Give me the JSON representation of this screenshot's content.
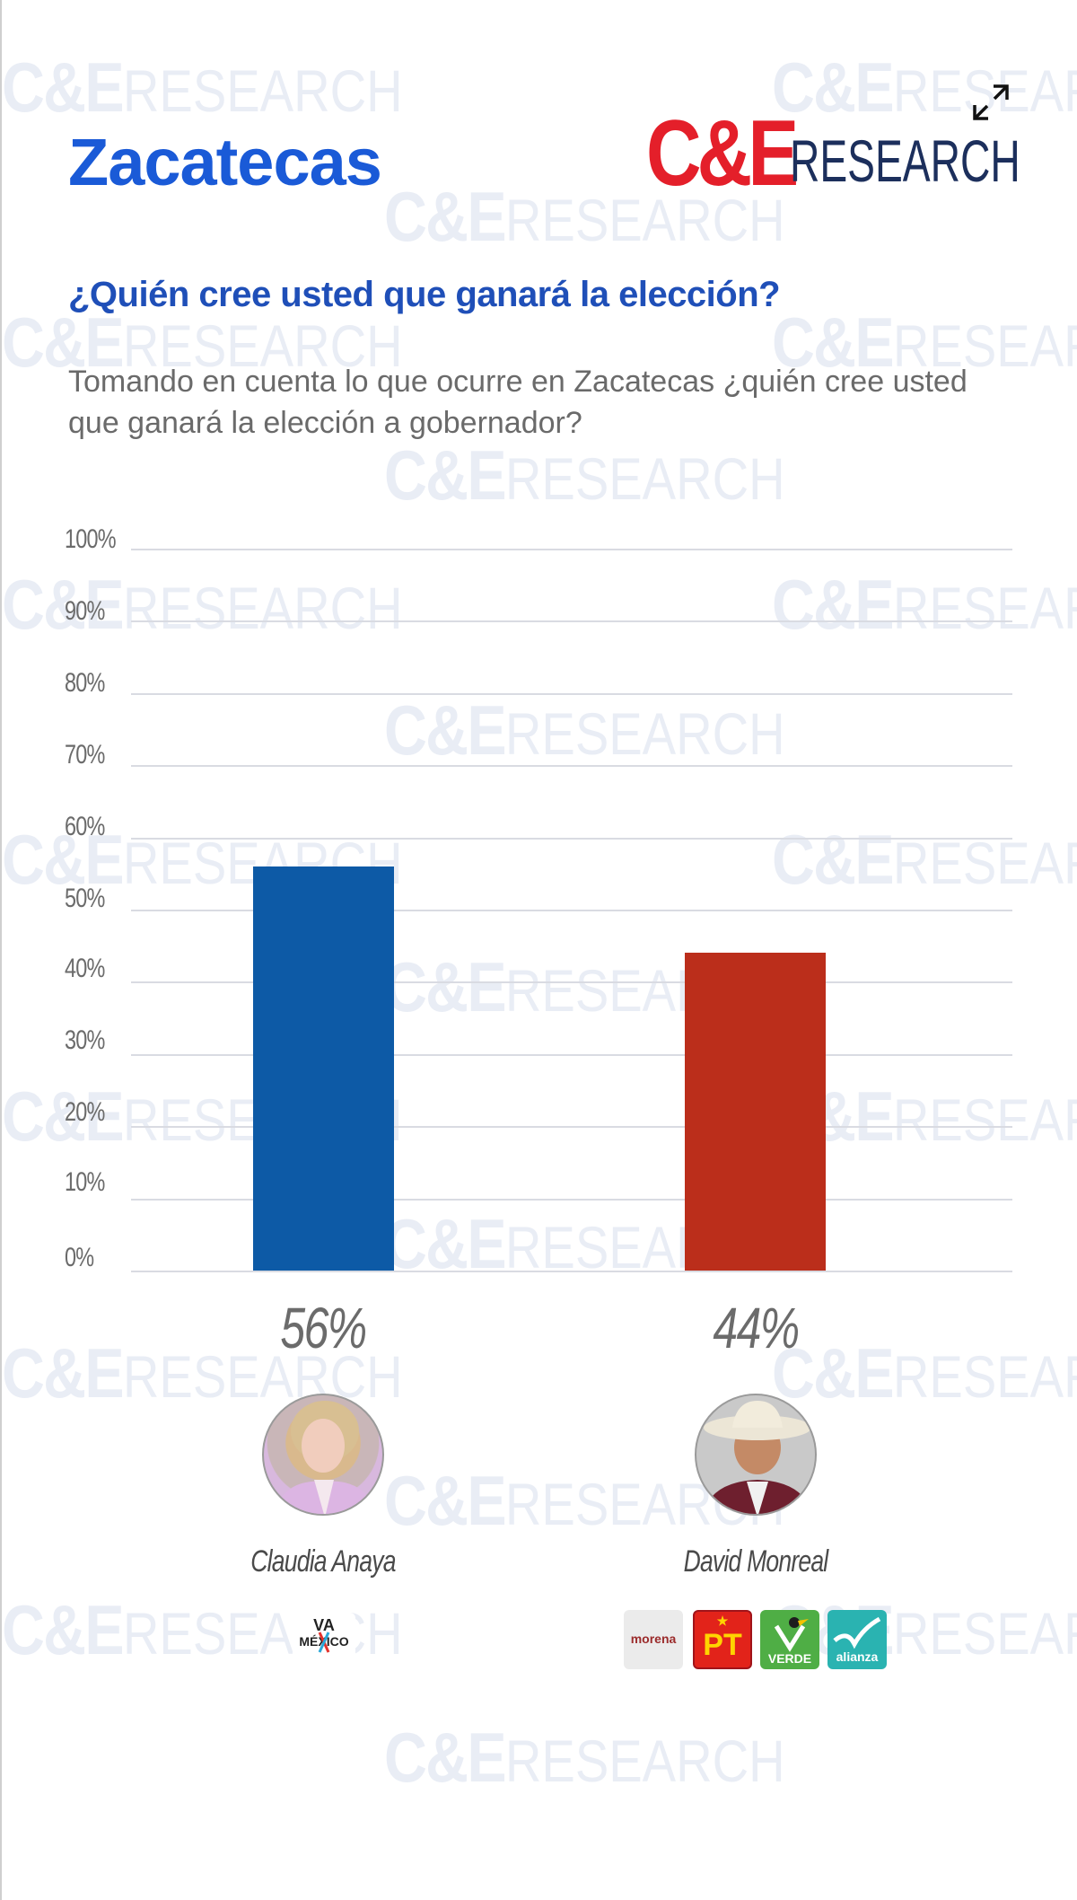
{
  "header": {
    "title": "Zacatecas",
    "brand_ce": "C&E",
    "brand_research": "RESEARCH",
    "expand_icon": "expand-arrows-icon"
  },
  "question": {
    "title": "¿Quién cree usted que ganará la elección?",
    "text": "Tomando en cuenta lo que ocurre en Zacatecas ¿quién cree usted que ganará la elección a gobernador?"
  },
  "watermark": {
    "ce": "C&E",
    "research": "RESEARCH"
  },
  "colors": {
    "title_blue": "#1a5ad7",
    "bar_blue": "#0d5aa6",
    "bar_red": "#bb2e1b",
    "grid": "#d9dbe2",
    "brand_red": "#e41f2a",
    "brand_navy": "#1c2f5c"
  },
  "chart_data": {
    "type": "bar",
    "title": "¿Quién cree usted que ganará la elección?",
    "xlabel": "",
    "ylabel": "",
    "categories": [
      "Claudia Anaya",
      "David Monreal"
    ],
    "values": [
      56,
      44
    ],
    "value_labels": [
      "56%",
      "44%"
    ],
    "colors": [
      "#0d5aa6",
      "#bb2e1b"
    ],
    "ylim": [
      0,
      100
    ],
    "yticks": [
      "0%",
      "10%",
      "20%",
      "30%",
      "40%",
      "50%",
      "60%",
      "70%",
      "80%",
      "90%",
      "100%"
    ],
    "grid": true,
    "legend": "none"
  },
  "candidates": [
    {
      "name": "Claudia Anaya",
      "pct": "56%",
      "parties": [
        "VA X MÉXICO"
      ]
    },
    {
      "name": "David Monreal",
      "pct": "44%",
      "parties": [
        "morena",
        "PT",
        "VERDE",
        "alianza"
      ]
    }
  ],
  "parties": {
    "va_line1": "VA",
    "va_line2": "MÉXICO",
    "morena": "morena",
    "pt": "PT",
    "verde": "VERDE",
    "alianza": "alianza"
  }
}
